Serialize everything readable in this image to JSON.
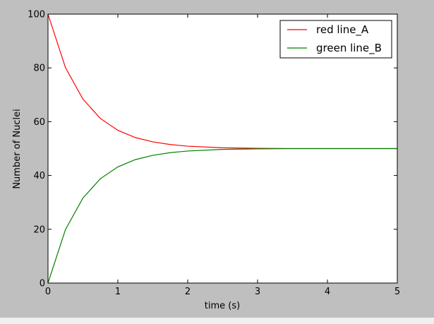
{
  "chart_data": {
    "type": "line",
    "title": "",
    "xlabel": "time (s)",
    "ylabel": "Number of Nuclei",
    "xlim": [
      0,
      5
    ],
    "ylim": [
      0,
      100
    ],
    "xticks": [
      "0",
      "1",
      "2",
      "3",
      "4",
      "5"
    ],
    "yticks": [
      "0",
      "20",
      "40",
      "60",
      "80",
      "100"
    ],
    "grid": false,
    "legend_position": "top-right",
    "series": [
      {
        "name": "red line_A",
        "color": "#ff0000",
        "x": [
          0,
          0.25,
          0.5,
          0.75,
          1,
          1.25,
          1.5,
          1.75,
          2,
          2.5,
          3,
          3.5,
          4,
          4.5,
          5
        ],
        "y": [
          100,
          80.1,
          68.4,
          61.2,
          56.8,
          54.1,
          52.5,
          51.5,
          50.9,
          50.3,
          50.1,
          50.0,
          50.0,
          50.0,
          50.0
        ]
      },
      {
        "name": "green line_B",
        "color": "#008000",
        "x": [
          0,
          0.25,
          0.5,
          0.75,
          1,
          1.25,
          1.5,
          1.75,
          2,
          2.5,
          3,
          3.5,
          4,
          4.5,
          5
        ],
        "y": [
          0,
          19.9,
          31.6,
          38.8,
          43.2,
          45.9,
          47.5,
          48.5,
          49.1,
          49.7,
          49.9,
          50.0,
          50.0,
          50.0,
          50.0
        ]
      }
    ]
  }
}
